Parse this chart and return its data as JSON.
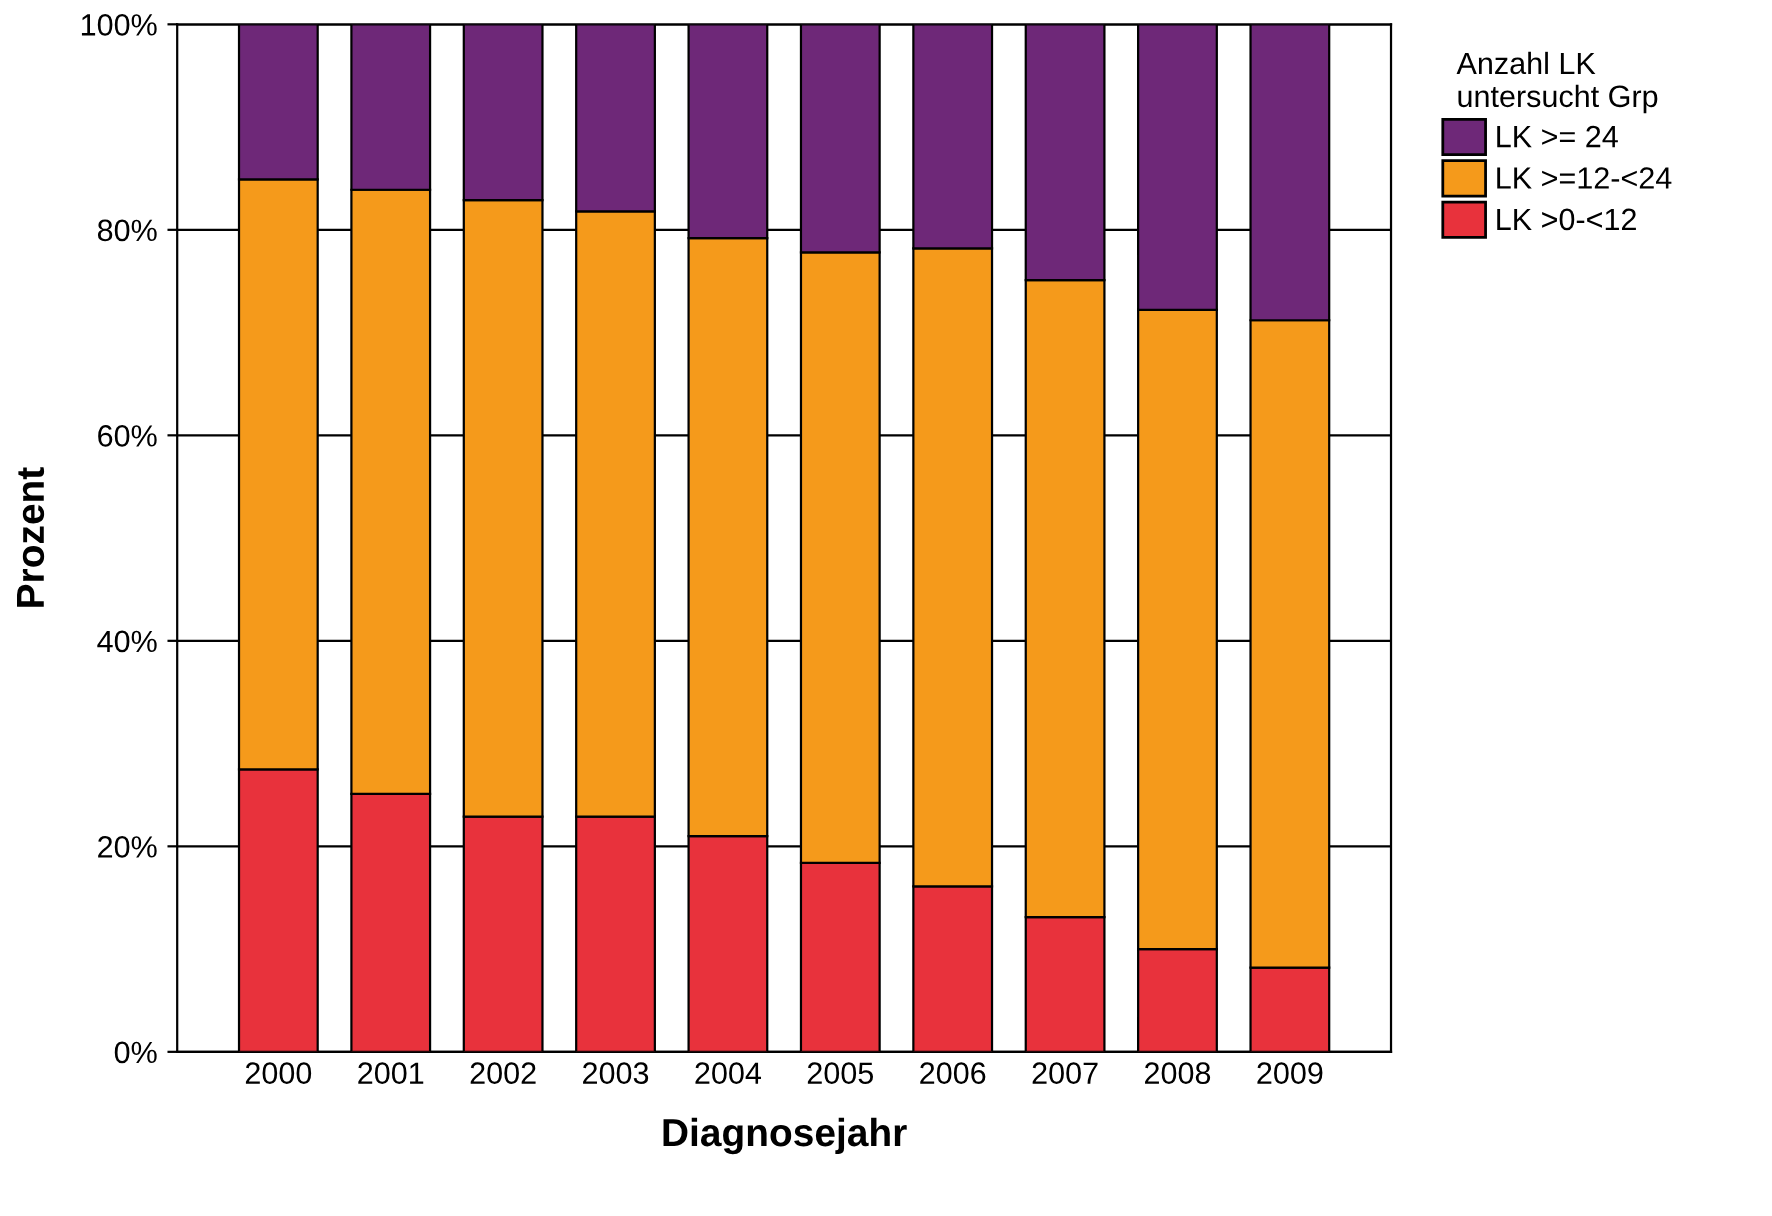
{
  "chart_data": {
    "type": "bar",
    "stacked": true,
    "xlabel": "Diagnosejahr",
    "ylabel": "Prozent",
    "legend_title": "Anzahl LK\nuntersucht Grp",
    "categories": [
      "2000",
      "2001",
      "2002",
      "2003",
      "2004",
      "2005",
      "2006",
      "2007",
      "2008",
      "2009"
    ],
    "series": [
      {
        "name": "LK >0-<12",
        "color": "#e8323c",
        "values": [
          27.5,
          25.1,
          22.9,
          22.9,
          21.0,
          18.4,
          16.1,
          13.1,
          10.0,
          8.2
        ]
      },
      {
        "name": "LK >=12-<24",
        "color": "#f59a1b",
        "values": [
          57.4,
          58.8,
          60.0,
          58.9,
          58.2,
          59.4,
          62.1,
          62.0,
          62.2,
          63.0
        ]
      },
      {
        "name": "LK >= 24",
        "color": "#6e2878",
        "values": [
          15.1,
          16.1,
          17.1,
          18.2,
          20.8,
          22.2,
          21.8,
          24.9,
          27.8,
          28.8
        ]
      }
    ],
    "ylim": [
      0,
      100
    ],
    "yticks": [
      {
        "value": 0,
        "label": "0%"
      },
      {
        "value": 20,
        "label": "20%"
      },
      {
        "value": 40,
        "label": "40%"
      },
      {
        "value": 60,
        "label": "60%"
      },
      {
        "value": 80,
        "label": "80%"
      },
      {
        "value": 100,
        "label": "100%"
      }
    ],
    "grid": "y",
    "legend": "right"
  }
}
